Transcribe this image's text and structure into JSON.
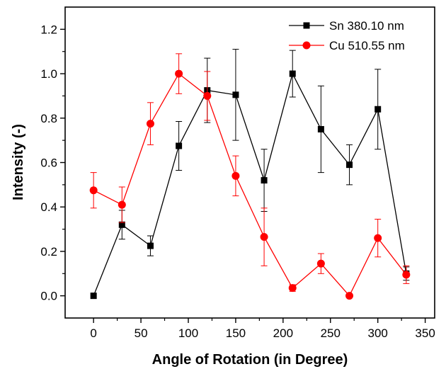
{
  "chart_data": {
    "type": "line",
    "title": "",
    "xlabel": "Angle of Rotation (in Degree)",
    "ylabel": "Intensity (-)",
    "xlim": [
      -30,
      360
    ],
    "ylim": [
      -0.1,
      1.3
    ],
    "xticks": [
      0,
      50,
      100,
      150,
      200,
      250,
      300,
      350
    ],
    "xticks_minor": [
      25,
      75,
      125,
      175,
      225,
      275,
      325
    ],
    "yticks": [
      0.0,
      0.2,
      0.4,
      0.6,
      0.8,
      1.0,
      1.2
    ],
    "yticks_minor": [
      0.1,
      0.3,
      0.5,
      0.7,
      0.9,
      1.1
    ],
    "ytick_labels": [
      "0.0",
      "0.2",
      "0.4",
      "0.6",
      "0.8",
      "1.0",
      "1.2"
    ],
    "grid": false,
    "legend_position": "top-right",
    "series": [
      {
        "name": "Sn 380.10 nm",
        "color": "#000000",
        "marker": "square",
        "x": [
          0,
          30,
          60,
          90,
          120,
          150,
          180,
          210,
          240,
          270,
          300,
          330
        ],
        "y": [
          0.0,
          0.32,
          0.225,
          0.675,
          0.925,
          0.905,
          0.52,
          1.0,
          0.75,
          0.59,
          0.84,
          0.1
        ],
        "yerr": [
          0.0,
          0.065,
          0.045,
          0.11,
          0.145,
          0.205,
          0.14,
          0.105,
          0.195,
          0.09,
          0.18,
          0.03
        ]
      },
      {
        "name": "Cu 510.55 nm",
        "color": "#ff0000",
        "marker": "circle",
        "x": [
          0,
          30,
          60,
          90,
          120,
          150,
          180,
          210,
          240,
          270,
          300,
          330
        ],
        "y": [
          0.475,
          0.41,
          0.775,
          1.0,
          0.9,
          0.54,
          0.265,
          0.035,
          0.145,
          0.0,
          0.26,
          0.095
        ],
        "yerr": [
          0.08,
          0.08,
          0.095,
          0.09,
          0.11,
          0.09,
          0.13,
          0.015,
          0.045,
          0.0,
          0.085,
          0.04
        ]
      }
    ]
  }
}
